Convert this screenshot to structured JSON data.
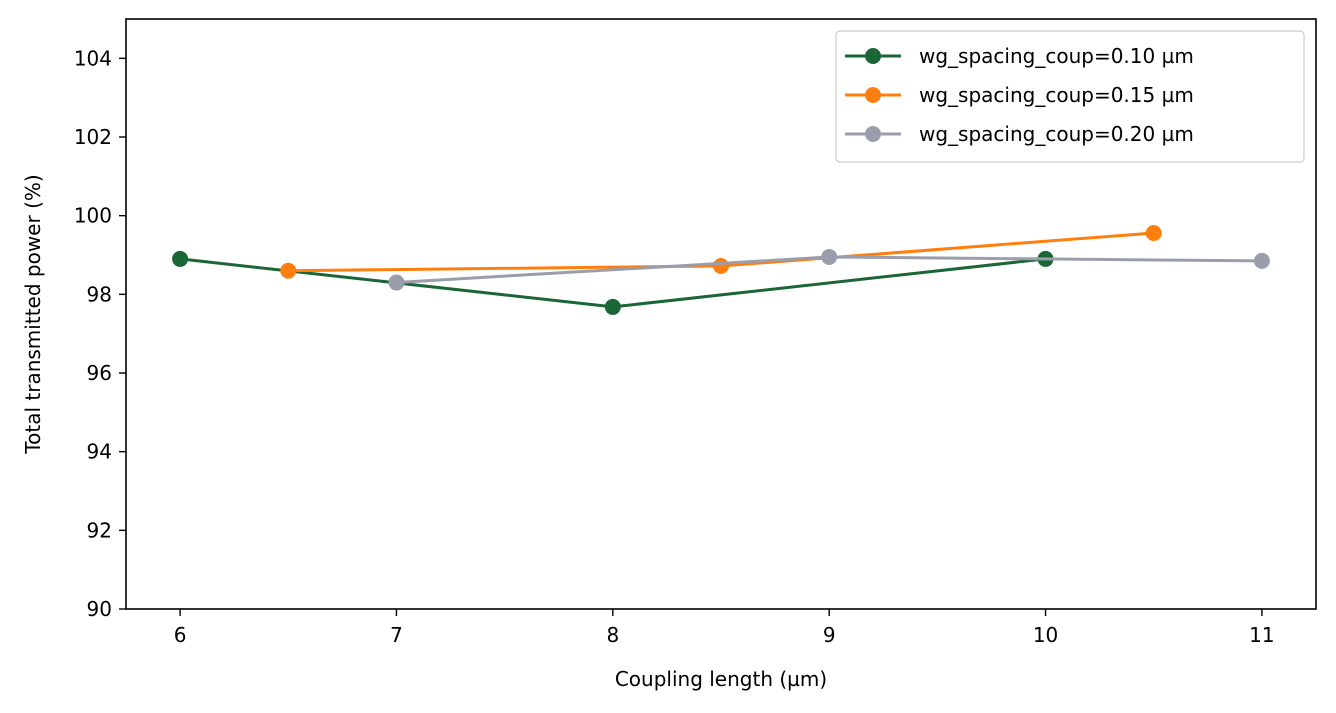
{
  "chart_data": {
    "type": "line",
    "title": "",
    "xlabel": "Coupling length (µm)",
    "ylabel": "Total transmitted power (%)",
    "xlim": [
      5.75,
      11.25
    ],
    "ylim": [
      90,
      105
    ],
    "xticks": [
      6,
      7,
      8,
      9,
      10,
      11
    ],
    "yticks": [
      90,
      92,
      94,
      96,
      98,
      100,
      102,
      104
    ],
    "grid": false,
    "legend_position": "top-right",
    "series": [
      {
        "name": "wg_spacing_coup=0.10 µm",
        "color": "#1a6634",
        "x": [
          6,
          8,
          10
        ],
        "y": [
          98.9,
          97.68,
          98.9
        ]
      },
      {
        "name": "wg_spacing_coup=0.15 µm",
        "color": "#ff7f0e",
        "x": [
          6.5,
          8.5,
          10.5
        ],
        "y": [
          98.6,
          98.72,
          99.56
        ]
      },
      {
        "name": "wg_spacing_coup=0.20 µm",
        "color": "#9a9eac",
        "x": [
          7,
          9,
          11
        ],
        "y": [
          98.3,
          98.95,
          98.85
        ]
      }
    ]
  }
}
